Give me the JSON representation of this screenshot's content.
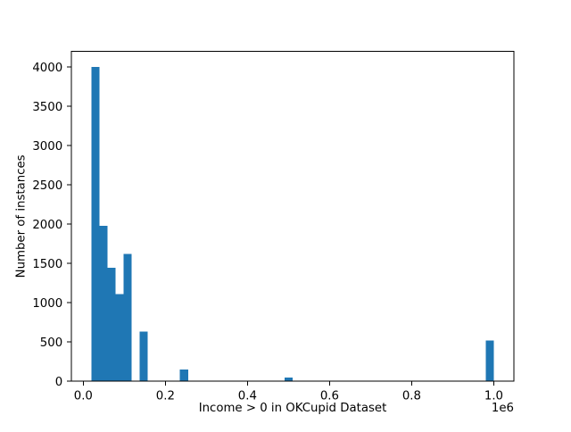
{
  "chart_data": {
    "type": "bar",
    "subtype": "histogram",
    "title": "",
    "xlabel": "Income > 0 in OKCupid Dataset",
    "ylabel": "Number of instances",
    "x_offset_text": "1e6",
    "bar_color": "#1f77b4",
    "axis_color": "#000000",
    "background_color": "#ffffff",
    "bin_start": 20000,
    "bin_width": 19600,
    "counts": [
      4000,
      1980,
      1443,
      1111,
      1621,
      0,
      631,
      0,
      0,
      0,
      0,
      149,
      0,
      0,
      0,
      0,
      0,
      0,
      0,
      0,
      0,
      0,
      0,
      0,
      48,
      0,
      0,
      0,
      0,
      0,
      0,
      0,
      0,
      0,
      0,
      0,
      0,
      0,
      0,
      0,
      0,
      0,
      0,
      0,
      0,
      0,
      0,
      0,
      0,
      521
    ],
    "xlim": [
      -29000,
      1049000
    ],
    "ylim": [
      0,
      4200
    ],
    "x_ticks": {
      "values": [
        0,
        200000,
        400000,
        600000,
        800000,
        1000000
      ],
      "labels": [
        "0.0",
        "0.2",
        "0.4",
        "0.6",
        "0.8",
        "1.0"
      ]
    },
    "y_ticks": {
      "values": [
        0,
        500,
        1000,
        1500,
        2000,
        2500,
        3000,
        3500,
        4000
      ],
      "labels": [
        "0",
        "500",
        "1000",
        "1500",
        "2000",
        "2500",
        "3000",
        "3500",
        "4000"
      ]
    },
    "grid": false,
    "legend": null
  }
}
